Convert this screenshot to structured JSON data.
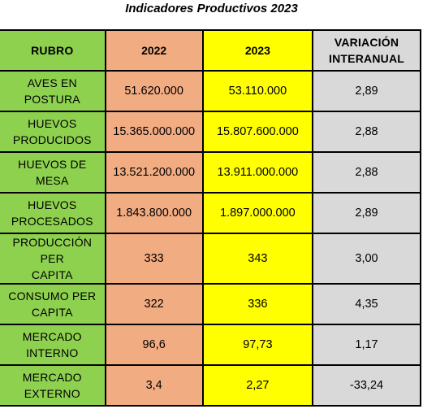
{
  "title": "Indicadores Productivos 2023",
  "colors": {
    "rubro": "#8ed14f",
    "y2022": "#f2ac82",
    "y2023": "#ffff00",
    "variacion": "#d9d9d9"
  },
  "headers": {
    "rubro": "RUBRO",
    "y2022": "2022",
    "y2023": "2023",
    "variacion": "VARIACIÓN\nINTERANUAL"
  },
  "rows": [
    {
      "rubro": "AVES EN POSTURA",
      "y2022": "51.620.000",
      "y2023": "53.110.000",
      "variacion": "2,89"
    },
    {
      "rubro": "HUEVOS\nPRODUCIDOS",
      "y2022": "15.365.000.000",
      "y2023": "15.807.600.000",
      "variacion": "2,88"
    },
    {
      "rubro": "HUEVOS DE MESA",
      "y2022": "13.521.200.000",
      "y2023": "13.911.000.000",
      "variacion": "2,88"
    },
    {
      "rubro": "HUEVOS\nPROCESADOS",
      "y2022": "1.843.800.000",
      "y2023": "1.897.000.000",
      "variacion": "2,89"
    },
    {
      "rubro": "PRODUCCIÓN PER\nCAPITA",
      "y2022": "333",
      "y2023": "343",
      "variacion": "3,00"
    },
    {
      "rubro": "CONSUMO PER\nCAPITA",
      "y2022": "322",
      "y2023": "336",
      "variacion": "4,35"
    },
    {
      "rubro": "MERCADO\nINTERNO",
      "y2022": "96,6",
      "y2023": "97,73",
      "variacion": "1,17"
    },
    {
      "rubro": "MERCADO\nEXTERNO",
      "y2022": "3,4",
      "y2023": "2,27",
      "variacion": "-33,24"
    }
  ]
}
